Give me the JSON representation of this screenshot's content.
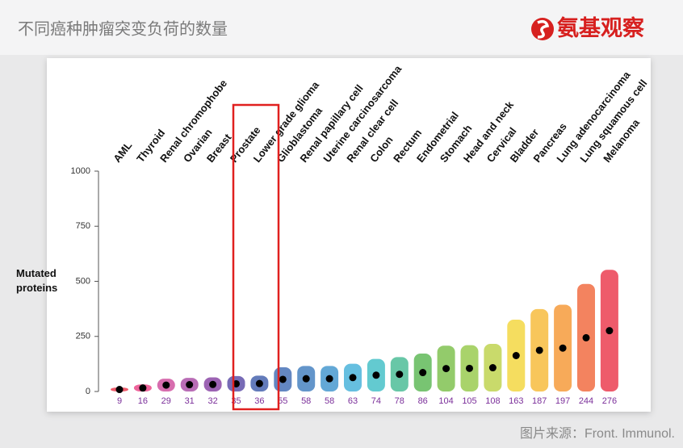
{
  "header": {
    "title": "不同癌种肿瘤突变负荷的数量",
    "logo": "氨基观察"
  },
  "source": "图片来源：Front. Immunol.",
  "chart_data": {
    "type": "strip",
    "ylabel": "Mutated proteins",
    "categories": [
      "AML",
      "Thyroid",
      "Renal chromophobe",
      "Ovarian",
      "Breast",
      "Prostate",
      "Lower grade glioma",
      "Glioblastoma",
      "Renal papillary cell",
      "Uterine carcinosarcoma",
      "Renal clear cell",
      "Colon",
      "Rectum",
      "Endometrial",
      "Stomach",
      "Head and neck",
      "Cervical",
      "Bladder",
      "Pancreas",
      "Lung adenocarcinoma",
      "Lung squamous cell",
      "Melanoma"
    ],
    "values": [
      9,
      16,
      29,
      31,
      32,
      35,
      36,
      55,
      58,
      58,
      63,
      74,
      78,
      86,
      104,
      105,
      108,
      163,
      187,
      197,
      244,
      276
    ],
    "colors": [
      "#e8243a",
      "#e8307a",
      "#c93c93",
      "#a13c9e",
      "#7b2f9a",
      "#4a3a9e",
      "#2f4fa3",
      "#2f5fae",
      "#2f72b8",
      "#2f8bc8",
      "#33a9d6",
      "#2fb8c0",
      "#36b48a",
      "#4bb043",
      "#6fba3a",
      "#8cc43a",
      "#b7cd3a",
      "#f2d12a",
      "#f5b324",
      "#f48e22",
      "#ef5a2a",
      "#e8243a"
    ],
    "median_color": "#000000",
    "label_color": "#7b2f9a",
    "ylim": [
      0,
      1000
    ],
    "yticks": [
      0,
      250,
      500,
      750,
      1000
    ]
  }
}
